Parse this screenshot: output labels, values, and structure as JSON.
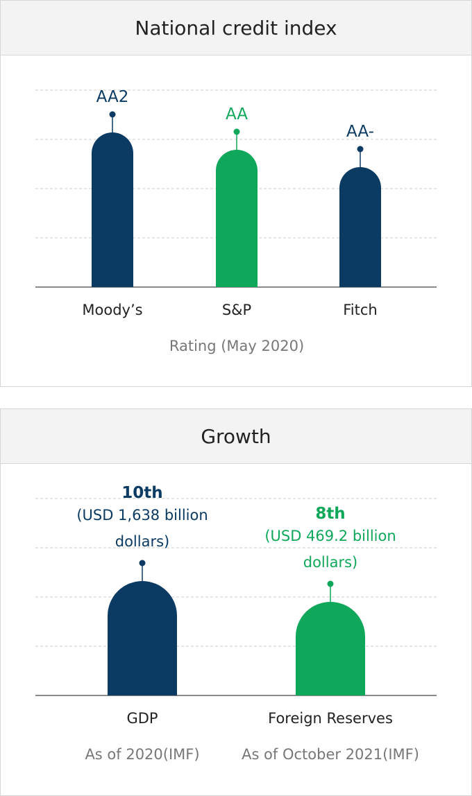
{
  "chart_data": [
    {
      "type": "bar",
      "title": "National credit index",
      "categories": [
        "Moody’s",
        "S&P",
        "Fitch"
      ],
      "values": [
        "AA2",
        "AA",
        "AA-"
      ],
      "colors": [
        "#0b3a63",
        "#0fa75a",
        "#0b3a63"
      ],
      "xlabel": "Rating (May 2020)",
      "grid": true
    },
    {
      "type": "bar",
      "title": "Growth",
      "categories": [
        "GDP",
        "Foreign Reserves"
      ],
      "values": [
        "10th",
        "8th"
      ],
      "value_details": [
        "(USD 1,638 billion dollars)",
        "(USD 469.2 billion dollars)"
      ],
      "category_notes": [
        "As of 2020(IMF)",
        "As of October 2021(IMF)"
      ],
      "colors": [
        "#0b3a63",
        "#0fa75a"
      ],
      "grid": true
    }
  ]
}
